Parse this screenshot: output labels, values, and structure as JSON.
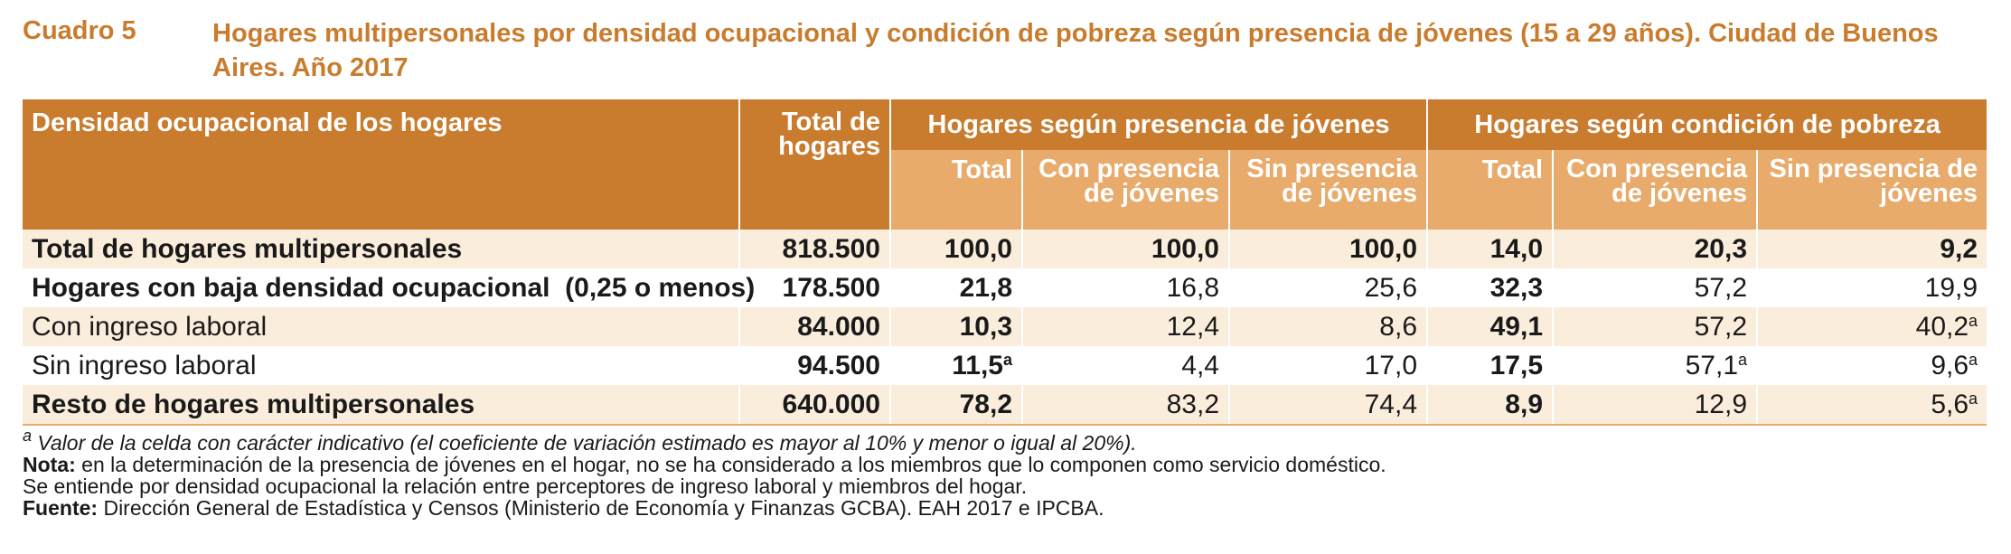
{
  "cuadro": "Cuadro 5",
  "title": "Hogares multipersonales por densidad ocupacional y condición de pobreza según presencia de jóvenes (15 a 29 años). Ciudad de  Buenos Aires. Año 2017",
  "table": {
    "headers": {
      "col1": "Densidad ocupacional de los hogares",
      "total": "Total de hogares",
      "group_jovenes": "Hogares según presencia de jóvenes",
      "group_pobreza": "Hogares según condición de pobreza",
      "sub_total": "Total",
      "sub_con": "Con presencia de jóvenes",
      "sub_sin": "Sin presencia de jóvenes"
    },
    "rows": [
      {
        "label": "Total de hogares multipersonales",
        "total": "818.500",
        "j_total": "100,0",
        "j_con": "100,0",
        "j_sin": "100,0",
        "p_total": "14,0",
        "p_con": "20,3",
        "p_sin": "9,2"
      },
      {
        "label": "Hogares con baja densidad ocupacional",
        "label_extra": "(0,25 o menos)",
        "total": "178.500",
        "j_total": "21,8",
        "j_con": "16,8",
        "j_sin": "25,6",
        "p_total": "32,3",
        "p_con": "57,2",
        "p_sin": "19,9"
      },
      {
        "label": "Con ingreso laboral",
        "total": "84.000",
        "j_total": "10,3",
        "j_con": "12,4",
        "j_sin": "8,6",
        "p_total": "49,1",
        "p_con": "57,2",
        "p_sin": "40,2",
        "p_sin_sup": "a"
      },
      {
        "label": "Sin ingreso laboral",
        "total": "94.500",
        "j_total": "11,5",
        "j_total_sup": "a",
        "j_con": "4,4",
        "j_sin": "17,0",
        "p_total": "17,5",
        "p_con": "57,1",
        "p_con_sup": "a",
        "p_sin": "9,6",
        "p_sin_sup": "a"
      },
      {
        "label": "Resto de hogares multipersonales",
        "total": "640.000",
        "j_total": "78,2",
        "j_con": "83,2",
        "j_sin": "74,4",
        "p_total": "8,9",
        "p_con": "12,9",
        "p_sin": "5,6",
        "p_sin_sup": "a"
      }
    ]
  },
  "notes": {
    "footnote_mark": "a",
    "footnote_text": "Valor de la celda con carácter indicativo (el coeficiente de variación estimado es mayor al 10% y menor o igual al 20%).",
    "nota_label": "Nota:",
    "nota_text": "en la determinación de la presencia de jóvenes en el hogar, no se ha considerado a los miembros que lo componen como servicio doméstico.",
    "nota_text2": "Se entiende por densidad ocupacional la relación entre perceptores de ingreso laboral y miembros del hogar.",
    "fuente_label": "Fuente:",
    "fuente_text": "Dirección General de Estadística y Censos (Ministerio de Economía y Finanzas GCBA). EAH 2017 e IPCBA."
  }
}
